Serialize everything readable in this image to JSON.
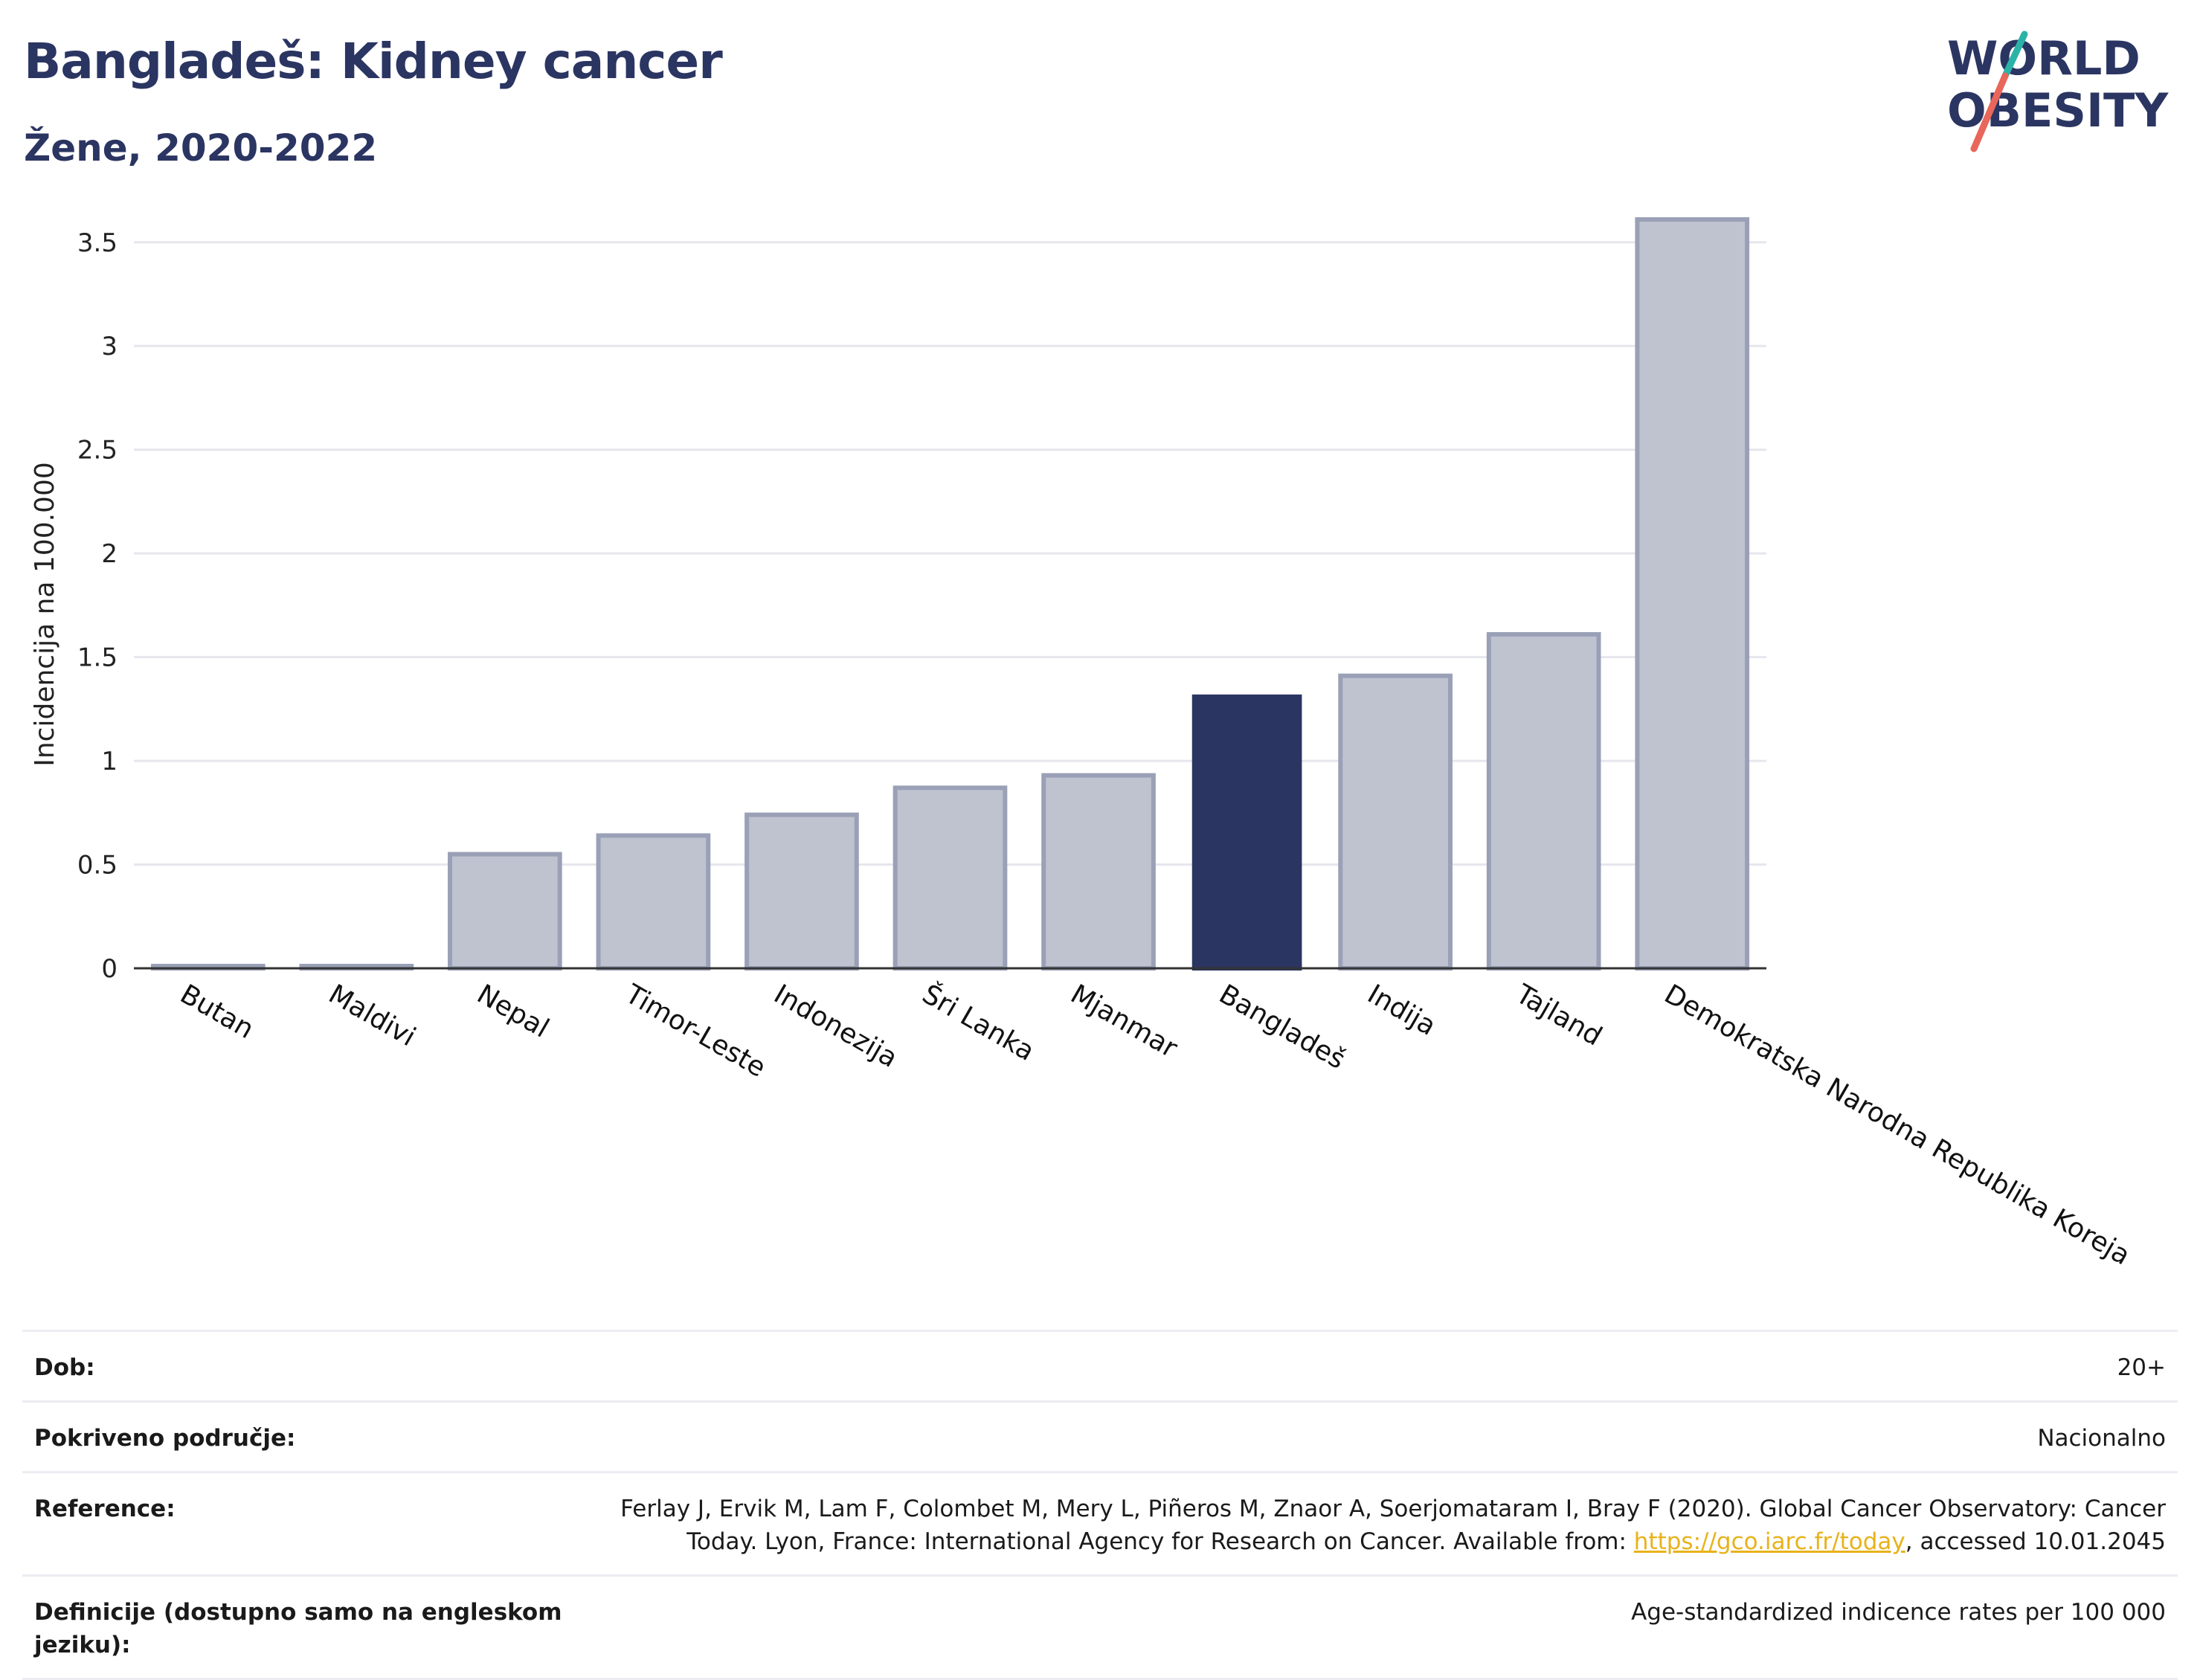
{
  "header": {
    "title": "Bangladeš: Kidney cancer",
    "subtitle": "Žene, 2020-2022"
  },
  "logo": {
    "line1": "WORLD",
    "line2": "OBESITY",
    "colors": {
      "text": "#2b3562",
      "slash_teal": "#2bb3a8",
      "slash_red": "#e8665a"
    }
  },
  "chart_data": {
    "type": "bar",
    "ylabel": "Incidencija na 100.000",
    "ylim": [
      0,
      3.7
    ],
    "yticks": [
      0,
      0.5,
      1,
      1.5,
      2,
      2.5,
      3,
      3.5
    ],
    "ytick_labels": [
      "0",
      "0.5",
      "1",
      "1.5",
      "2",
      "2.5",
      "3",
      "3.5"
    ],
    "categories": [
      "Butan",
      "Maldivi",
      "Nepal",
      "Timor-Leste",
      "Indonezija",
      "Šri Lanka",
      "Mjanmar",
      "Bangladeš",
      "Indija",
      "Tajland",
      "Demokratska Narodna Republika Koreja"
    ],
    "values": [
      0.01,
      0.01,
      0.55,
      0.64,
      0.74,
      0.87,
      0.93,
      1.32,
      1.41,
      1.61,
      3.61
    ],
    "highlight": "Bangladeš",
    "grid": true,
    "colors": {
      "bar": "#bfc3d0",
      "bar_border": "#9aa0b6",
      "highlight": "#2b3562",
      "grid": "#e6e6ee",
      "axis": "#333333"
    }
  },
  "info": [
    {
      "label": "Dob:",
      "value": "20+"
    },
    {
      "label": "Pokriveno područje:",
      "value": "Nacionalno"
    },
    {
      "label": "Reference:",
      "value_pre": "Ferlay J, Ervik M, Lam F, Colombet M, Mery L, Piñeros M, Znaor A, Soerjomataram I, Bray F (2020). Global Cancer Observatory: Cancer Today. Lyon, France: International Agency for Research on Cancer. Available from: ",
      "link": "https://gco.iarc.fr/today",
      "value_post": ", accessed 10.01.2045"
    },
    {
      "label": "Definicije (dostupno samo na engleskom jeziku):",
      "value": "Age-standardized indicence rates per 100 000"
    }
  ]
}
